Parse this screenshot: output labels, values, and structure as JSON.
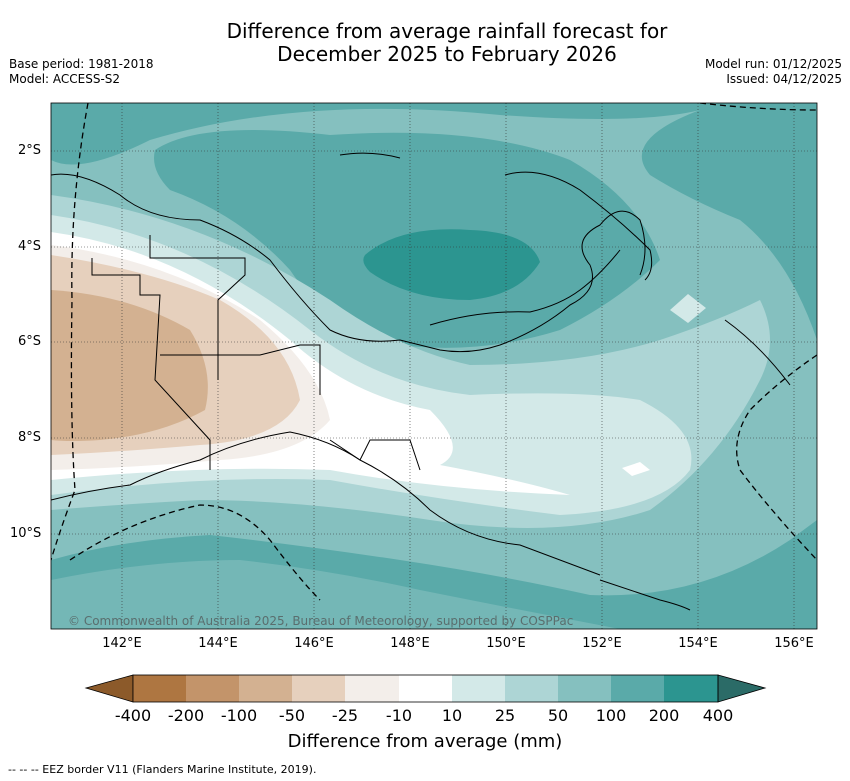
{
  "header": {
    "title_line1": "Difference from average rainfall forecast for",
    "title_line2": "December 2025 to February 2026",
    "base_period": "Base period: 1981-2018",
    "model": "Model: ACCESS-S2",
    "model_run": "Model run: 01/12/2025",
    "issued": "Issued: 04/12/2025"
  },
  "map": {
    "region": "Papua New Guinea",
    "lat_labels": [
      "2°S",
      "4°S",
      "6°S",
      "8°S",
      "10°S"
    ],
    "lon_labels": [
      "142°E",
      "144°E",
      "146°E",
      "148°E",
      "150°E",
      "152°E",
      "154°E",
      "156°E"
    ],
    "credit": "© Commonwealth of Australia 2025, Bureau of Meteorology, supported by COSPPac"
  },
  "legend": {
    "title": "Difference from average (mm)",
    "ticks": [
      "-400",
      "-200",
      "-100",
      "-50",
      "-25",
      "-10",
      "10",
      "25",
      "50",
      "100",
      "200",
      "400"
    ],
    "colors": [
      "#8c5a2a",
      "#ae7641",
      "#c3946a",
      "#d3b191",
      "#e6d0bd",
      "#f3eeea",
      "#ffffff",
      "#d3e9e8",
      "#add5d5",
      "#85c0bf",
      "#5aaaa9",
      "#2c9590",
      "#2b6b67"
    ]
  },
  "footer": {
    "eez_note": "-- -- -- EEZ border V11 (Flanders Marine Institute, 2019)."
  }
}
